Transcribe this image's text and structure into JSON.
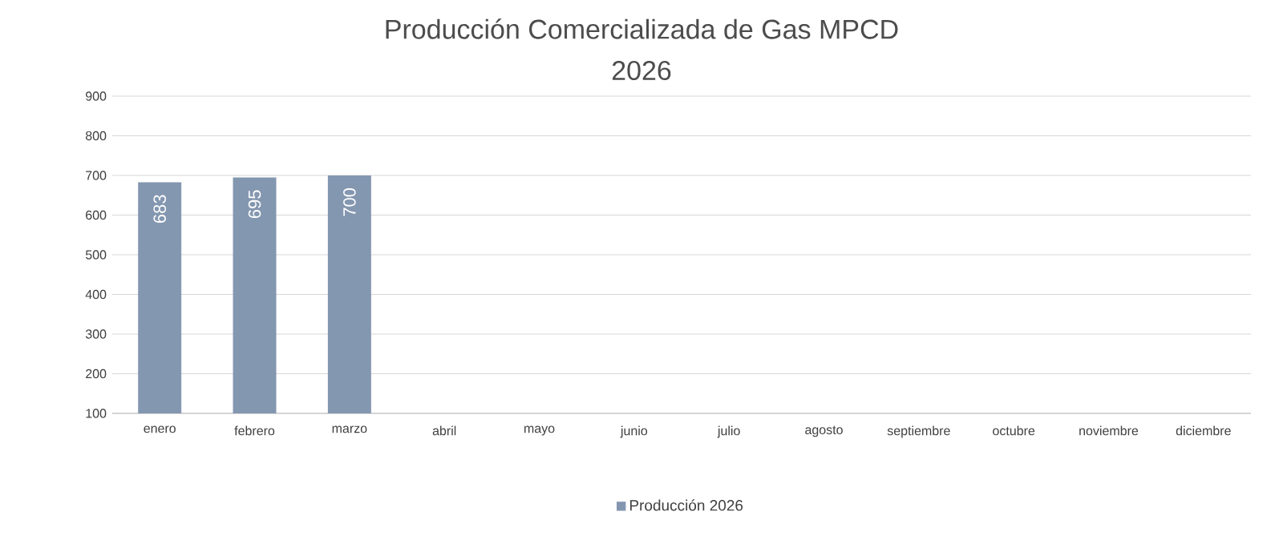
{
  "chart_data": {
    "type": "bar",
    "title": "Producción Comercializada de Gas MPCD",
    "subtitle": "2026",
    "categories": [
      "enero",
      "febrero",
      "marzo",
      "abril",
      "mayo",
      "junio",
      "julio",
      "agosto",
      "septiembre",
      "octubre",
      "noviembre",
      "diciembre"
    ],
    "series": [
      {
        "name": "Producción 2026",
        "color": "#8497b0",
        "values": [
          683,
          695,
          700,
          null,
          null,
          null,
          null,
          null,
          null,
          null,
          null,
          null
        ]
      }
    ],
    "ylim": [
      100,
      900
    ],
    "yticks": [
      100,
      200,
      300,
      400,
      500,
      600,
      700,
      800,
      900
    ],
    "grid": "y",
    "legend": "bottom",
    "data_labels": true
  }
}
